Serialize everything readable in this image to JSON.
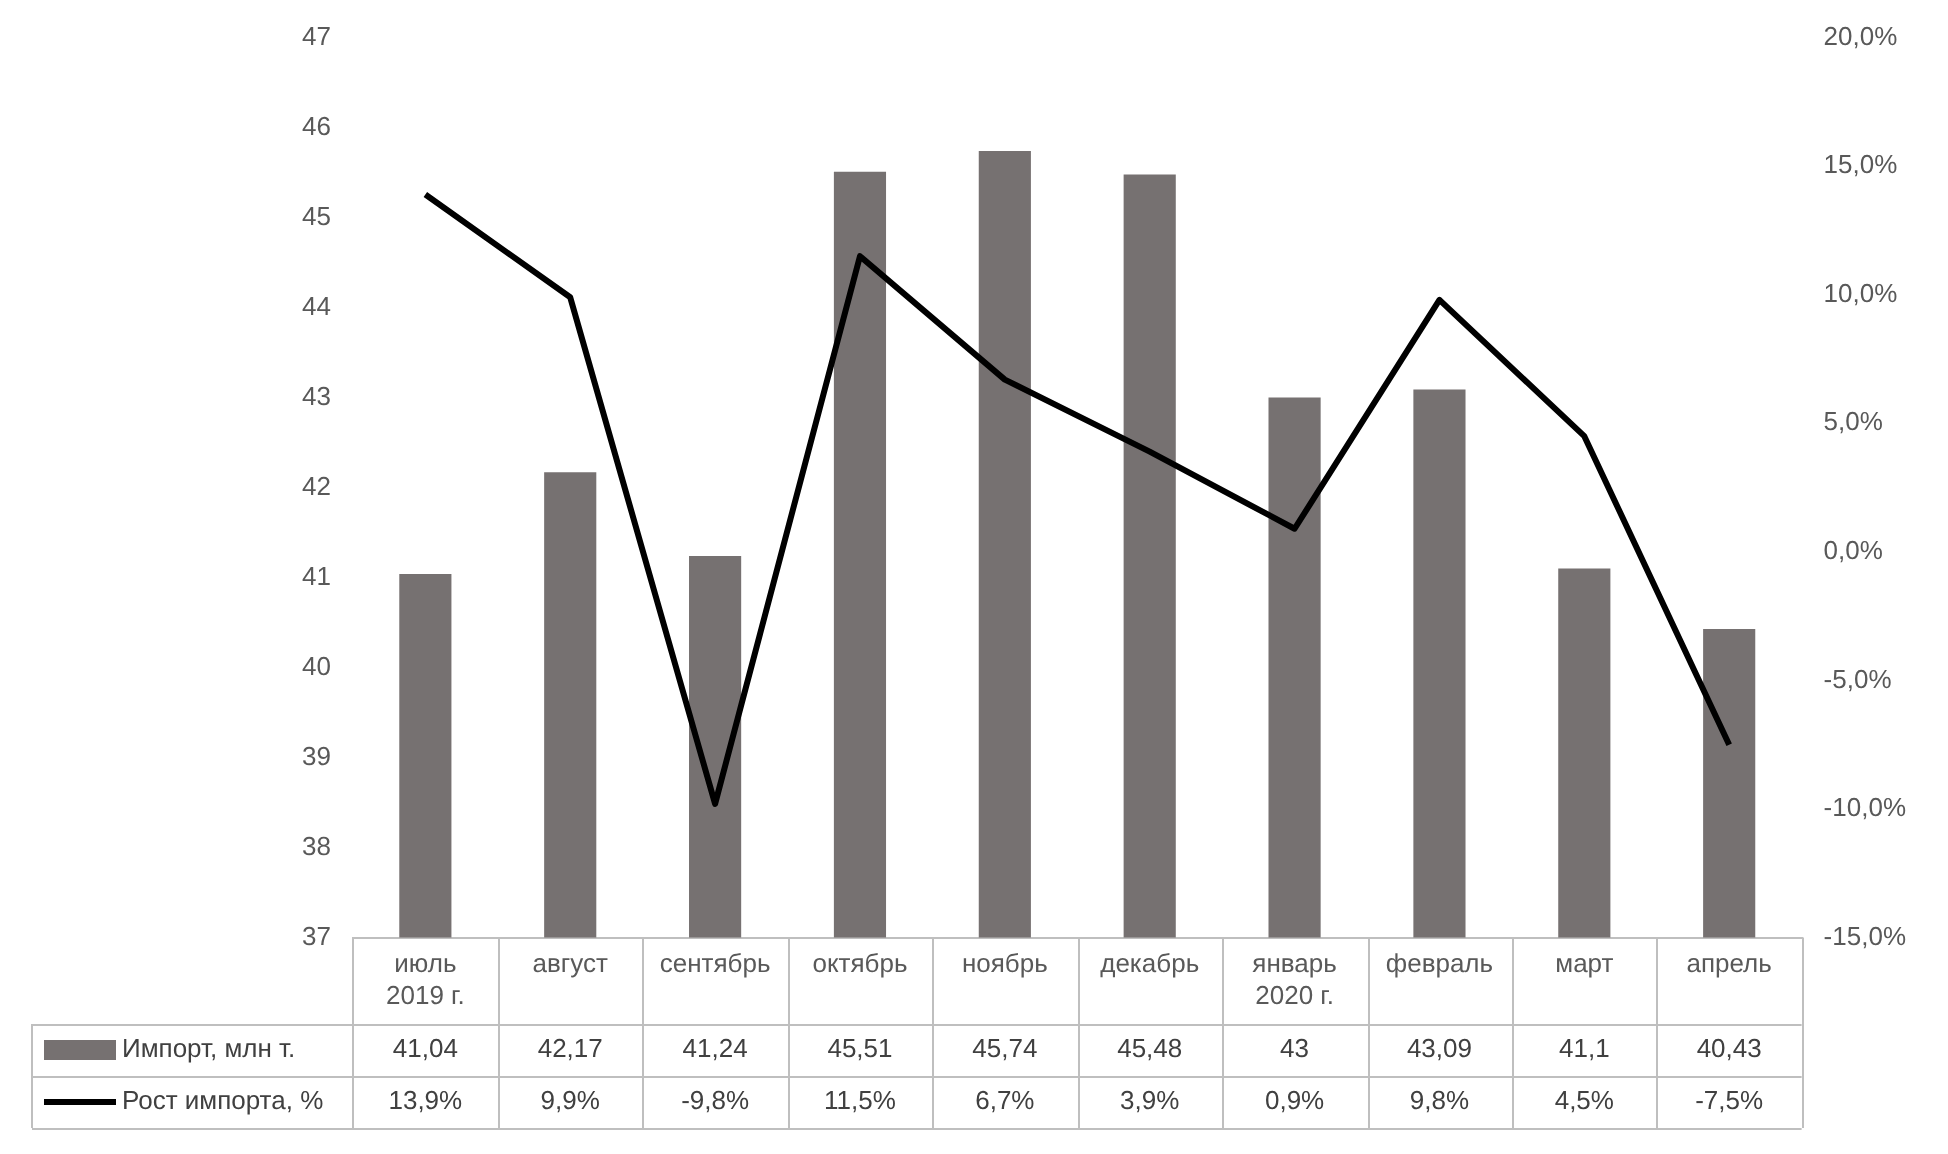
{
  "chart_data": {
    "type": "bar",
    "categories": [
      "июль 2019 г.",
      "август",
      "сентябрь",
      "октябрь",
      "ноябрь",
      "декабрь",
      "январь 2020 г.",
      "февраль",
      "март",
      "апрель"
    ],
    "series": [
      {
        "name": "Импорт, млн т.",
        "color": "#767171",
        "values": [
          41.04,
          42.17,
          41.24,
          45.51,
          45.74,
          45.48,
          43,
          43.09,
          41.1,
          40.43
        ],
        "value_labels": [
          "41,04",
          "42,17",
          "41,24",
          "45,51",
          "45,74",
          "45,48",
          "43",
          "43,09",
          "41,1",
          "40,43"
        ]
      },
      {
        "name": "Рост импорта, %",
        "type": "line",
        "axis": "y2",
        "color": "#000000",
        "values": [
          13.9,
          9.9,
          -9.8,
          11.5,
          6.7,
          3.9,
          0.9,
          9.8,
          4.5,
          -7.5
        ],
        "value_labels": [
          "13,9%",
          "9,9%",
          "-9,8%",
          "11,5%",
          "6,7%",
          "3,9%",
          "0,9%",
          "9,8%",
          "4,5%",
          "-7,5%"
        ]
      }
    ],
    "ylim": [
      37,
      47
    ],
    "yticks": [
      37,
      38,
      39,
      40,
      41,
      42,
      43,
      44,
      45,
      46,
      47
    ],
    "y2lim": [
      -15,
      20
    ],
    "y2ticks": [
      {
        "value": -15,
        "label": "-15,0%"
      },
      {
        "value": -10,
        "label": "-10,0%"
      },
      {
        "value": -5,
        "label": "-5,0%"
      },
      {
        "value": 0,
        "label": "0,0%"
      },
      {
        "value": 5,
        "label": "5,0%"
      },
      {
        "value": 10,
        "label": "10,0%"
      },
      {
        "value": 15,
        "label": "15,0%"
      },
      {
        "value": 20,
        "label": "20,0%"
      }
    ],
    "grid": false,
    "legend": "bottom left",
    "marker": "none",
    "line_style": "solid"
  }
}
